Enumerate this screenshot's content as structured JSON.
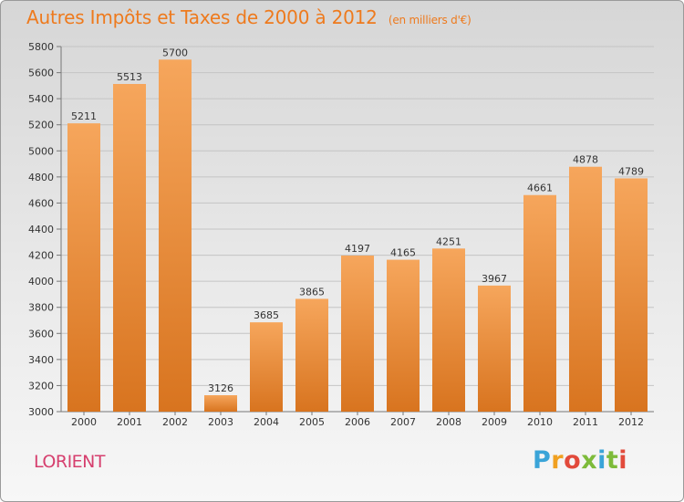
{
  "header": {
    "title": "Autres Impôts et Taxes de 2000 à 2012",
    "subtitle": "(en milliers d'€)"
  },
  "footer": {
    "city": "LORIENT",
    "logo": {
      "letters": [
        "P",
        "r",
        "o",
        "x",
        "i",
        "t",
        "i"
      ],
      "colors": [
        "#3aa4d8",
        "#f0a020",
        "#e24a3b",
        "#7dbb3a",
        "#3aa4d8",
        "#7dbb3a",
        "#e24a3b"
      ]
    }
  },
  "colors": {
    "bar_light": "#f6a65c",
    "bar_dark": "#d8741f",
    "title": "#ee7a1d",
    "city": "#d63f6e"
  },
  "chart_data": {
    "type": "bar",
    "title": "Autres Impôts et Taxes de 2000 à 2012",
    "subtitle": "(en milliers d'€)",
    "categories": [
      "2000",
      "2001",
      "2002",
      "2003",
      "2004",
      "2005",
      "2006",
      "2007",
      "2008",
      "2009",
      "2010",
      "2011",
      "2012"
    ],
    "values": [
      5211,
      5513,
      5700,
      3126,
      3685,
      3865,
      4197,
      4165,
      4251,
      3967,
      4661,
      4878,
      4789
    ],
    "ylim": [
      3000,
      5800
    ],
    "yticks": [
      3000,
      3200,
      3400,
      3600,
      3800,
      4000,
      4200,
      4400,
      4600,
      4800,
      5000,
      5200,
      5400,
      5600,
      5800
    ],
    "grid": true
  }
}
